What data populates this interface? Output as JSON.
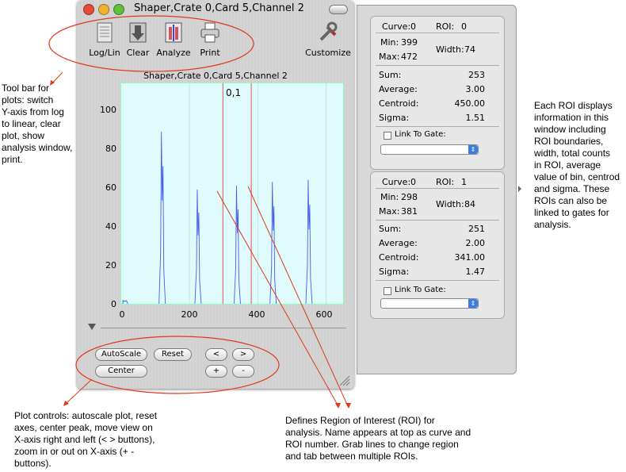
{
  "window": {
    "title": "Shaper,Crate  0,Card  5,Channel  2"
  },
  "toolbar": {
    "log_lin": "Log/Lin",
    "clear": "Clear",
    "analyze": "Analyze",
    "print": "Print",
    "customize": "Customize"
  },
  "plot": {
    "title": "Shaper,Crate  0,Card  5,Channel  2",
    "roi_label": "0,1",
    "y_ticks": [
      "100",
      "80",
      "60",
      "40",
      "20",
      "0"
    ],
    "x_ticks": [
      "0",
      "200",
      "400",
      "600"
    ],
    "peaks": [
      {
        "x": 120,
        "y": 89
      },
      {
        "x": 225,
        "y": 59
      },
      {
        "x": 340,
        "y": 61
      },
      {
        "x": 445,
        "y": 63
      },
      {
        "x": 550,
        "y": 64
      }
    ],
    "roi_lines_x": [
      298,
      381
    ]
  },
  "controls": {
    "autoscale": "AutoScale",
    "reset": "Reset",
    "left": "<",
    "right": ">",
    "center": "Center",
    "plus": "+",
    "minus": "-"
  },
  "roi_panels": [
    {
      "curve_label": "Curve:",
      "curve": "0",
      "roi_label": "ROI:",
      "roi": "0",
      "min_label": "Min:",
      "min": "399",
      "max_label": "Max:",
      "max": "472",
      "width_label": "Width:",
      "width": "74",
      "sum_label": "Sum:",
      "sum": "253",
      "avg_label": "Average:",
      "avg": "3.00",
      "centroid_label": "Centroid:",
      "centroid": "450.00",
      "sigma_label": "Sigma:",
      "sigma": "1.51",
      "link_label": "Link To Gate:"
    },
    {
      "curve_label": "Curve:",
      "curve": "0",
      "roi_label": "ROI:",
      "roi": "1",
      "min_label": "Min:",
      "min": "298",
      "max_label": "Max:",
      "max": "381",
      "width_label": "Width:",
      "width": "84",
      "sum_label": "Sum:",
      "sum": "251",
      "avg_label": "Average:",
      "avg": "2.00",
      "centroid_label": "Centroid:",
      "centroid": "341.00",
      "sigma_label": "Sigma:",
      "sigma": "1.47",
      "link_label": "Link To Gate:"
    }
  ],
  "annotations": {
    "toolbar_note": [
      "Tool bar for",
      "plots: switch",
      "Y-axis from log",
      "to linear, clear",
      "plot, show",
      "analysis window,",
      "print."
    ],
    "roi_note": [
      "Each ROI displays",
      "information in this",
      "window including",
      "ROI boundaries,",
      "width, total counts",
      "in ROI, average",
      "value of bin, centrod",
      "and sigma.  These",
      "ROIs can also be",
      "linked to gates for",
      "analysis."
    ],
    "controls_note": [
      "Plot controls: autoscale plot, reset",
      "axes, center peak, move view on",
      "X-axis right and left (< > buttons),",
      "zoom in or out on X-axis (+ -",
      "buttons)."
    ],
    "region_note": [
      "Defines Region of Interest (ROI) for",
      "analysis.  Name appears at top as curve and",
      "ROI number.  Grab lines to change region",
      "and tab between multiple ROIs."
    ]
  },
  "colors": {
    "plot_bg": "#dffbfb",
    "trace": "#4a5ee8",
    "roi_line": "#e07070",
    "callout": "#e03a1a"
  }
}
